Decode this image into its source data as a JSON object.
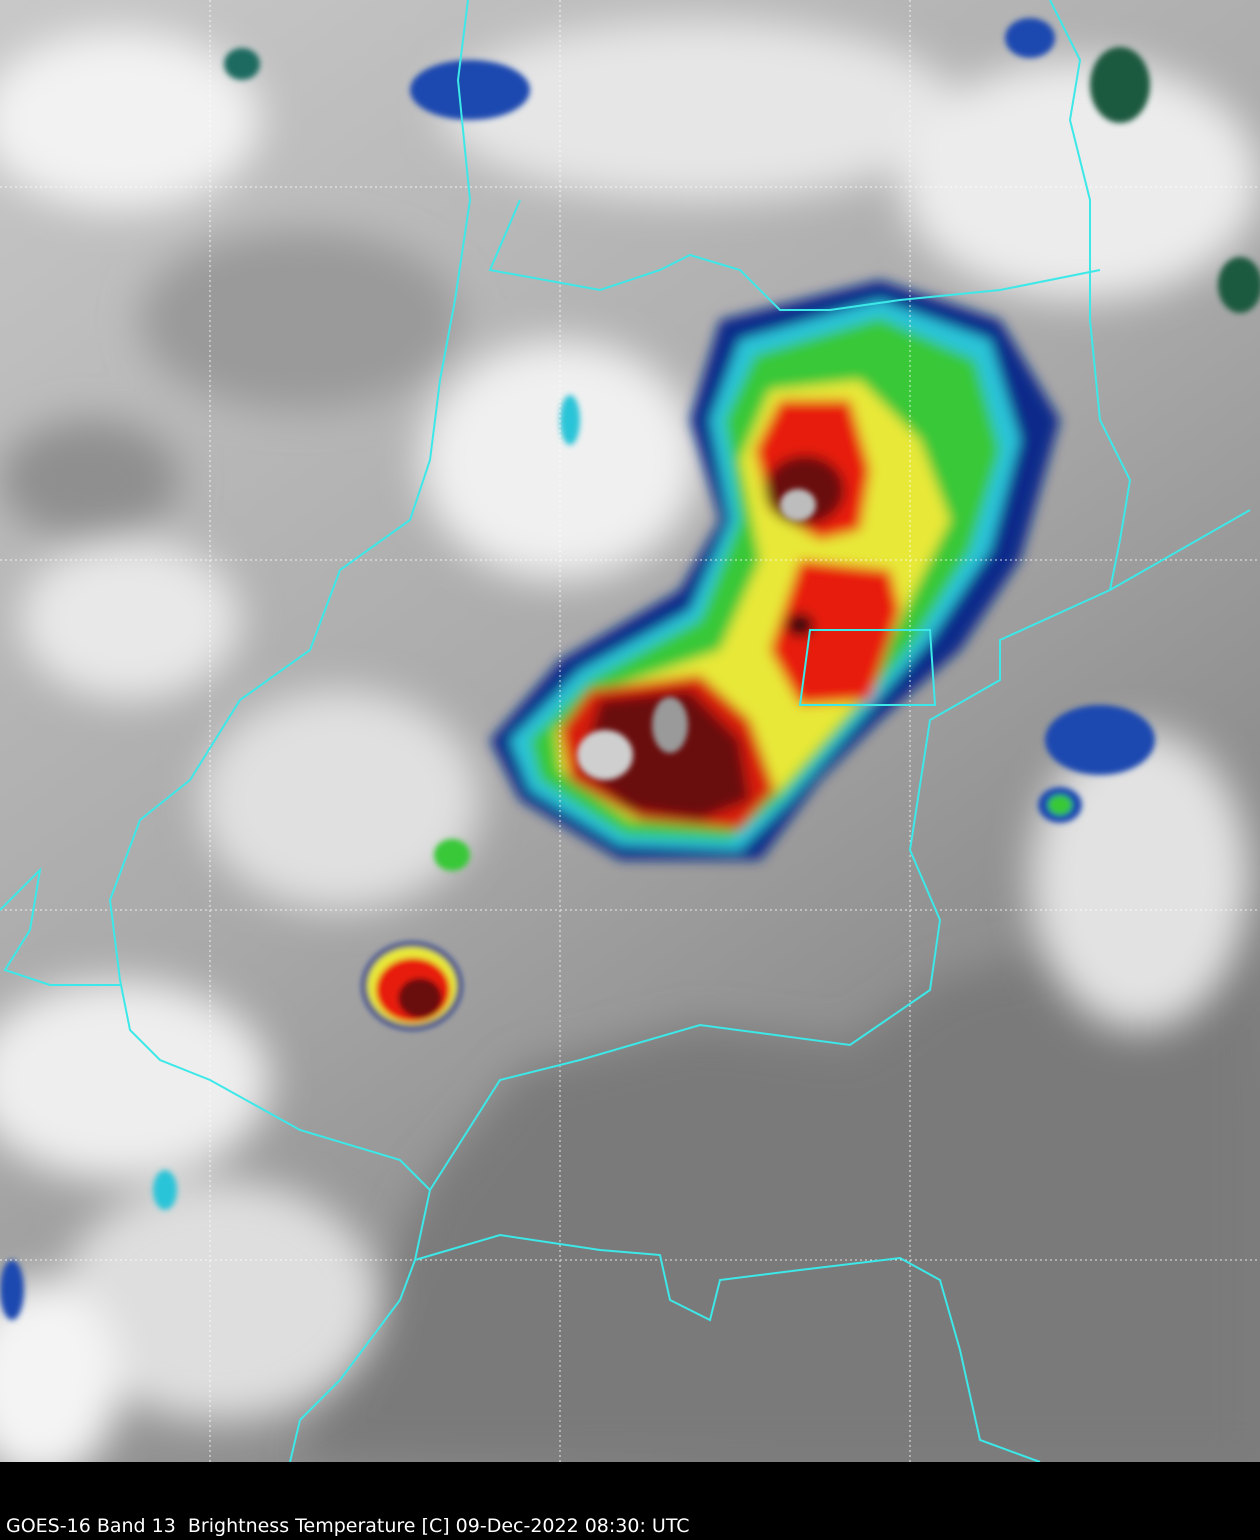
{
  "caption": "GOES-16 Band 13  Brightness Temperature [C] 09-Dec-2022 08:30: UTC"
}
